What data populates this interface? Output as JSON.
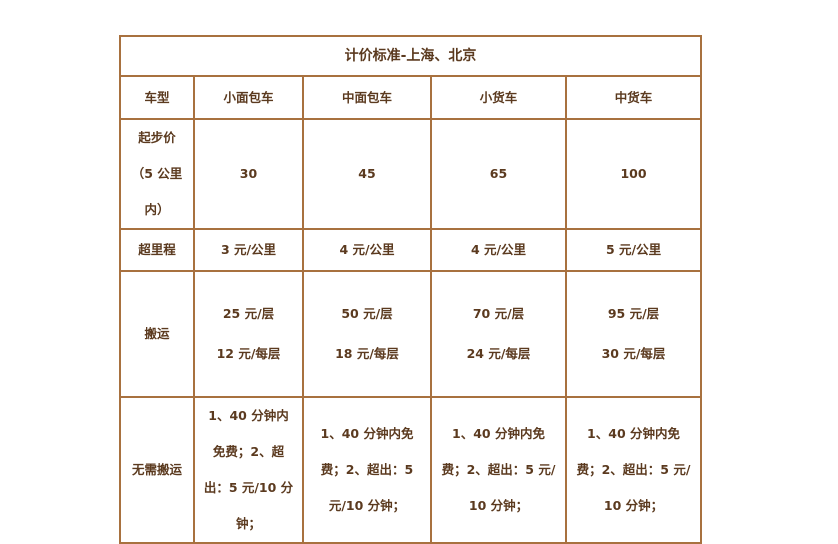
{
  "table": {
    "title": "计价标准-上海、北京",
    "header": [
      "车型",
      "小面包车",
      "中面包车",
      "小货车",
      "中货车"
    ],
    "rows": [
      [
        "起步价（5 公里内）",
        "30",
        "45",
        "65",
        "100"
      ],
      [
        "超里程",
        "3 元/公里",
        "4 元/公里",
        "4 元/公里",
        "5 元/公里"
      ],
      [
        "搬运",
        [
          "25 元/层",
          "12 元/每层"
        ],
        [
          "50 元/层",
          "18 元/每层"
        ],
        [
          "70 元/层",
          "24 元/每层"
        ],
        [
          "95 元/层",
          "30 元/每层"
        ]
      ],
      [
        "无需搬运",
        "1、40 分钟内免费；2、超出：5 元/10 分钟；",
        "1、40 分钟内免费；2、超出：5 元/10 分钟；",
        "1、40 分钟内免费；2、超出：5 元/10 分钟；",
        "1、40 分钟内免费；2、超出：5 元/10 分钟；"
      ]
    ]
  }
}
